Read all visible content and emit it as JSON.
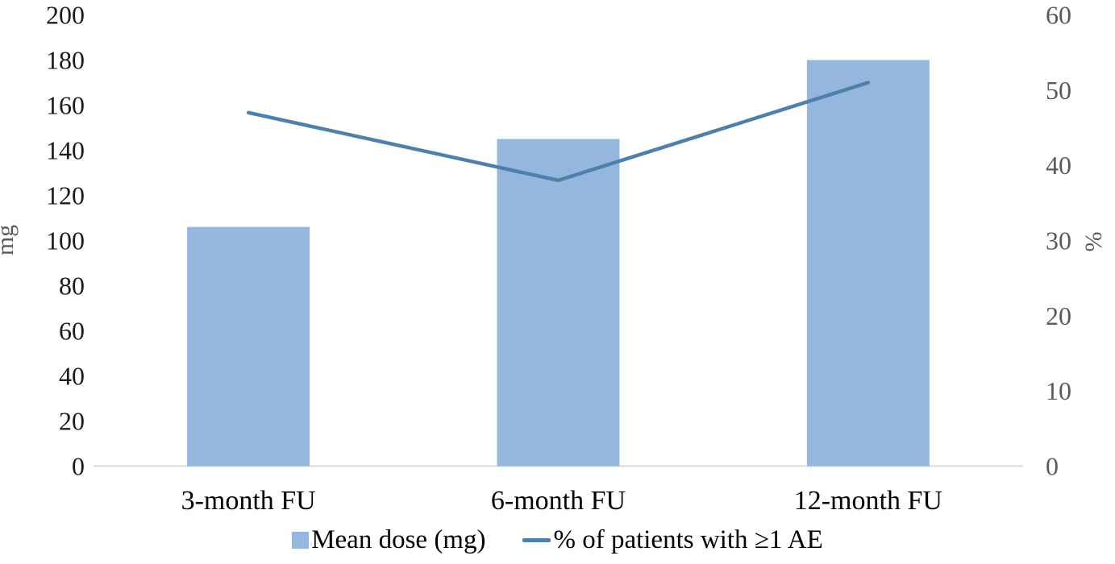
{
  "chart_data": {
    "type": "combo",
    "categories": [
      "3-month FU",
      "6-month FU",
      "12-month FU"
    ],
    "series": [
      {
        "name": "Mean dose (mg)",
        "type": "bar",
        "axis": "left",
        "values": [
          106,
          145,
          180
        ],
        "color": "#95b7dd"
      },
      {
        "name": "% of patients with ≥1 AE",
        "type": "line",
        "axis": "right",
        "values": [
          47,
          38,
          51
        ],
        "color": "#4e80ab"
      }
    ],
    "left_axis": {
      "label": "mg",
      "min": 0,
      "max": 200,
      "step": 20,
      "ticks": [
        0,
        20,
        40,
        60,
        80,
        100,
        120,
        140,
        160,
        180,
        200
      ]
    },
    "right_axis": {
      "label": "%",
      "min": 0,
      "max": 60,
      "step": 10,
      "ticks": [
        0,
        10,
        20,
        30,
        40,
        50,
        60
      ]
    },
    "grid": false,
    "legend_position": "bottom",
    "title": "",
    "xlabel": ""
  },
  "colors": {
    "bar_fill": "#95b7dd",
    "line_stroke": "#4e80ab",
    "axis_line": "#d9d9d9",
    "left_tick_text": "#1a1a1a",
    "right_tick_text": "#595959",
    "axis_title_text": "#595959",
    "category_text": "#000000",
    "legend_text": "#000000"
  }
}
